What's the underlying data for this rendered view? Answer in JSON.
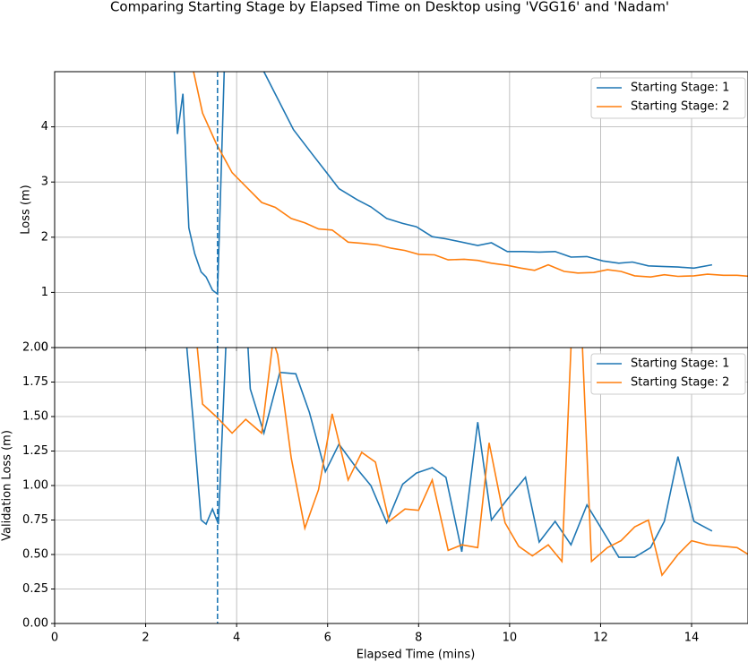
{
  "title": "Comparing Starting Stage by Elapsed Time on Desktop using 'VGG16' and 'Nadam'",
  "chart_data": [
    {
      "type": "line",
      "ylabel": "Loss (m)",
      "xlim": [
        0,
        15.24
      ],
      "ylim": [
        0,
        5.0
      ],
      "xticks": [
        0,
        2,
        4,
        6,
        8,
        10,
        12,
        14
      ],
      "show_xtick_labels": false,
      "yticks": [
        0,
        1,
        2,
        3,
        4
      ],
      "grid": true,
      "legend": "upper right",
      "vline": 3.58,
      "vline_color": "#1f77b4",
      "series": [
        {
          "name": "Starting Stage: 1",
          "color": "#1f77b4",
          "x": [
            2.6,
            2.7,
            2.82,
            2.95,
            3.08,
            3.22,
            3.33,
            3.47,
            3.58,
            3.8,
            4.15,
            4.6,
            5.25,
            5.65,
            5.95,
            6.25,
            6.65,
            6.95,
            7.3,
            7.65,
            7.95,
            8.3,
            8.6,
            9.3,
            9.6,
            9.95,
            10.3,
            10.65,
            11.0,
            11.35,
            11.7,
            12.05,
            12.4,
            12.7,
            13.05,
            13.35,
            13.7,
            14.05,
            14.45
          ],
          "values": [
            5.5,
            3.87,
            4.6,
            2.17,
            1.7,
            1.37,
            1.28,
            1.04,
            0.97,
            7.0,
            6.0,
            5.0,
            3.95,
            3.52,
            3.2,
            2.88,
            2.68,
            2.55,
            2.34,
            2.25,
            2.19,
            2.01,
            1.97,
            1.85,
            1.9,
            1.74,
            1.74,
            1.73,
            1.74,
            1.64,
            1.65,
            1.57,
            1.53,
            1.55,
            1.48,
            1.47,
            1.46,
            1.44,
            1.5
          ]
        },
        {
          "name": "Starting Stage: 2",
          "color": "#ff7f0e",
          "x": [
            3.0,
            3.25,
            3.55,
            3.9,
            4.2,
            4.55,
            4.85,
            5.2,
            5.5,
            5.8,
            6.1,
            6.45,
            6.75,
            7.1,
            7.4,
            7.7,
            8.0,
            8.35,
            8.65,
            9.0,
            9.3,
            9.6,
            9.95,
            10.25,
            10.55,
            10.85,
            11.2,
            11.5,
            11.85,
            12.15,
            12.45,
            12.75,
            13.1,
            13.4,
            13.7,
            14.05,
            14.35,
            14.7,
            15.0,
            15.3
          ],
          "values": [
            5.2,
            4.25,
            3.7,
            3.17,
            2.92,
            2.63,
            2.54,
            2.34,
            2.26,
            2.15,
            2.13,
            1.91,
            1.89,
            1.86,
            1.8,
            1.76,
            1.69,
            1.68,
            1.59,
            1.6,
            1.58,
            1.53,
            1.49,
            1.44,
            1.4,
            1.5,
            1.38,
            1.35,
            1.36,
            1.41,
            1.38,
            1.3,
            1.28,
            1.32,
            1.29,
            1.3,
            1.33,
            1.31,
            1.31,
            1.29
          ]
        }
      ]
    },
    {
      "type": "line",
      "ylabel": "Validation Loss (m)",
      "xlabel": "Elapsed Time (mins)",
      "xlim": [
        0,
        15.24
      ],
      "ylim": [
        0,
        2.0
      ],
      "xticks": [
        0,
        2,
        4,
        6,
        8,
        10,
        12,
        14
      ],
      "show_xtick_labels": true,
      "yticks": [
        {
          "value": 0,
          "label": "0.00"
        },
        {
          "value": 0.25,
          "label": "0.25"
        },
        {
          "value": 0.5,
          "label": "0.50"
        },
        {
          "value": 0.75,
          "label": "0.75"
        },
        {
          "value": 1,
          "label": "1.00"
        },
        {
          "value": 1.25,
          "label": "1.25"
        },
        {
          "value": 1.5,
          "label": "1.50"
        },
        {
          "value": 1.75,
          "label": "1.75"
        },
        {
          "value": 2,
          "label": "2.00"
        }
      ],
      "grid": true,
      "legend": "upper right",
      "vline": 3.58,
      "vline_color": "#1f77b4",
      "series": [
        {
          "name": "Starting Stage: 1",
          "color": "#1f77b4",
          "x": [
            2.8,
            3.05,
            3.22,
            3.33,
            3.47,
            3.6,
            3.8,
            4.2,
            4.3,
            4.6,
            4.95,
            5.3,
            5.6,
            5.95,
            6.25,
            6.65,
            6.95,
            7.3,
            7.65,
            7.95,
            8.3,
            8.6,
            8.95,
            9.3,
            9.6,
            9.95,
            10.35,
            10.65,
            11.0,
            11.35,
            11.7,
            12.05,
            12.4,
            12.75,
            13.1,
            13.4,
            13.7,
            14.05,
            14.45
          ],
          "values": [
            2.4,
            1.45,
            0.75,
            0.72,
            0.83,
            0.72,
            2.3,
            2.3,
            1.7,
            1.38,
            1.82,
            1.81,
            1.53,
            1.1,
            1.3,
            1.12,
            1.0,
            0.73,
            1.01,
            1.09,
            1.13,
            1.06,
            0.52,
            1.46,
            0.75,
            0.9,
            1.06,
            0.59,
            0.74,
            0.57,
            0.86,
            0.67,
            0.48,
            0.48,
            0.55,
            0.74,
            1.21,
            0.74,
            0.67
          ]
        },
        {
          "name": "Starting Stage: 2",
          "color": "#ff7f0e",
          "x": [
            3.05,
            3.25,
            3.55,
            3.9,
            4.2,
            4.55,
            4.8,
            4.9,
            5.2,
            5.5,
            5.8,
            6.1,
            6.45,
            6.75,
            7.05,
            7.35,
            7.7,
            8.0,
            8.3,
            8.65,
            8.95,
            9.3,
            9.55,
            9.9,
            10.2,
            10.5,
            10.85,
            11.15,
            11.4,
            11.55,
            11.8,
            12.15,
            12.45,
            12.75,
            13.05,
            13.35,
            13.7,
            14.0,
            14.35,
            14.7,
            15.0,
            15.35
          ],
          "values": [
            2.3,
            1.59,
            1.5,
            1.38,
            1.48,
            1.38,
            2.05,
            1.95,
            1.2,
            0.69,
            0.97,
            1.52,
            1.04,
            1.24,
            1.17,
            0.74,
            0.83,
            0.82,
            1.04,
            0.53,
            0.57,
            0.55,
            1.31,
            0.73,
            0.56,
            0.49,
            0.57,
            0.45,
            2.4,
            2.4,
            0.45,
            0.55,
            0.6,
            0.7,
            0.75,
            0.35,
            0.5,
            0.6,
            0.57,
            0.56,
            0.55,
            0.48
          ]
        }
      ]
    }
  ]
}
